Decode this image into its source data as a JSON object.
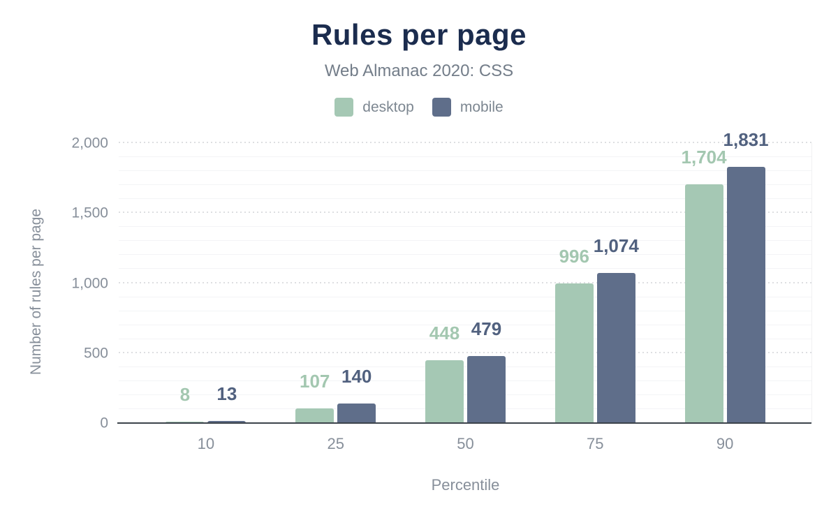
{
  "header": {
    "title": "Rules per page",
    "subtitle": "Web Almanac 2020: CSS"
  },
  "legend": {
    "items": [
      {
        "label": "desktop",
        "color": "#a5c8b4"
      },
      {
        "label": "mobile",
        "color": "#5f6e8a"
      }
    ]
  },
  "y_axis": {
    "title": "Number of rules per page",
    "ticks": [
      {
        "value": 0,
        "label": "0"
      },
      {
        "value": 500,
        "label": "500"
      },
      {
        "value": 1000,
        "label": "1,000"
      },
      {
        "value": 1500,
        "label": "1,500"
      },
      {
        "value": 2000,
        "label": "2,000"
      }
    ]
  },
  "x_axis": {
    "title": "Percentile",
    "ticks": [
      "10",
      "25",
      "50",
      "75",
      "90"
    ]
  },
  "chart_data": {
    "type": "bar",
    "title": "Rules per page",
    "subtitle": "Web Almanac 2020: CSS",
    "categories": [
      "10",
      "25",
      "50",
      "75",
      "90"
    ],
    "series": [
      {
        "name": "desktop",
        "color": "#a5c8b4",
        "label_color": "#a3c7b0",
        "values": [
          8,
          107,
          448,
          996,
          1704
        ],
        "value_labels": [
          "8",
          "107",
          "448",
          "996",
          "1,704"
        ]
      },
      {
        "name": "mobile",
        "color": "#5f6e8a",
        "label_color": "#51617f",
        "values": [
          13,
          140,
          479,
          1074,
          1831
        ],
        "value_labels": [
          "13",
          "140",
          "479",
          "1,074",
          "1,831"
        ]
      }
    ],
    "xlabel": "Percentile",
    "ylabel": "Number of rules per page",
    "ylim": [
      0,
      2000
    ],
    "y_major_step": 500,
    "y_minor_step": 100,
    "grid": "horizontal",
    "legend_position": "top"
  },
  "colors": {
    "title": "#1b2c4e",
    "subtitle": "#737d89",
    "axis_text": "#878f9a",
    "legend_text": "#7d8791",
    "baseline": "#3c434b",
    "major_gridline": "#d9dbde",
    "minor_gridline": "#f3f4f6",
    "background": "#ffffff"
  }
}
